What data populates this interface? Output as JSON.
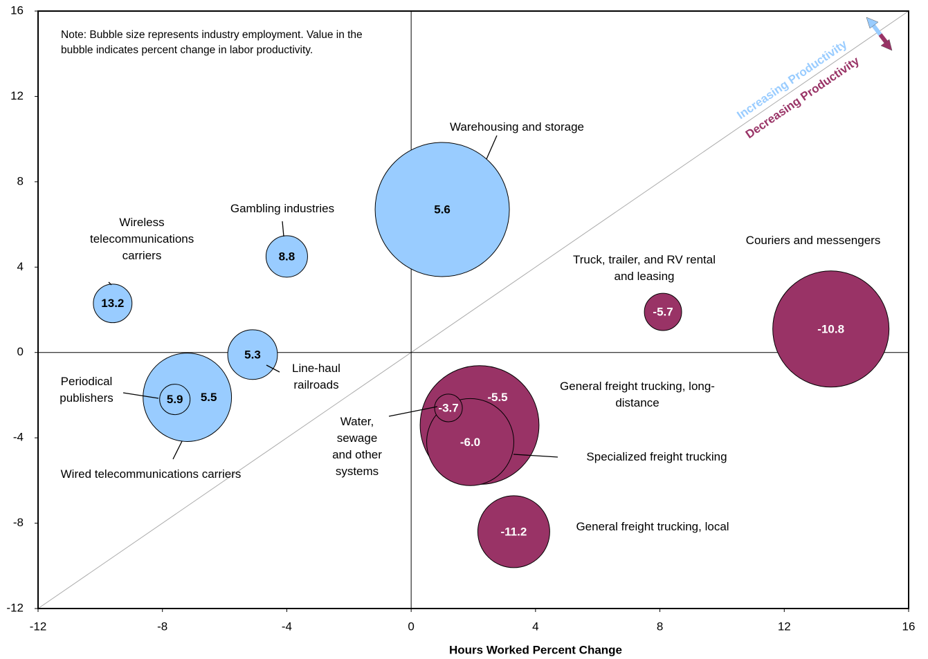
{
  "chart_data": {
    "type": "bubble",
    "note": "Note: Bubble size represents industry employment. Value in the bubble indicates percent change in labor productivity.",
    "xlabel": "Hours Worked Percent Change",
    "annotations": [
      "Increasing Productivity",
      "Decreasing Productivity"
    ],
    "annotation_colors": [
      "#99ccff",
      "#993366"
    ],
    "labels": [
      "Warehousing and storage",
      "General freight trucking, long-distance",
      "Couriers and messengers",
      "Wired telecommunications carriers",
      "Specialized freight trucking",
      "General freight trucking, local",
      "Line-haul railroads",
      "Gambling industries",
      "Wireless telecommunications carriers",
      "Truck, trailer, and RV rental and leasing",
      "Periodical publishers",
      "Water, sewage and other systems"
    ],
    "x": [
      1.0,
      2.2,
      13.5,
      -7.2,
      1.9,
      3.3,
      -5.1,
      -4.0,
      -9.6,
      8.1,
      -7.6,
      1.2
    ],
    "y": [
      6.7,
      -3.4,
      1.1,
      -2.1,
      -4.2,
      -8.4,
      -0.1,
      4.5,
      2.3,
      1.9,
      -2.2,
      -2.6
    ],
    "sizes": [
      700,
      549,
      525,
      304,
      295,
      201,
      96,
      67,
      58,
      54,
      36,
      30
    ],
    "values": [
      5.6,
      -5.5,
      -10.8,
      5.5,
      -6.0,
      -11.2,
      5.3,
      8.8,
      13.2,
      -5.7,
      5.9,
      -3.7
    ],
    "value_labels": [
      "5.6",
      "-5.5",
      "-10.8",
      "5.5",
      "-6.0",
      "-11.2",
      "5.3",
      "8.8",
      "13.2",
      "-5.7",
      "5.9",
      "-3.7"
    ],
    "colors": [
      "#99ccff",
      "#993366",
      "#993366",
      "#99ccff",
      "#993366",
      "#993366",
      "#99ccff",
      "#99ccff",
      "#99ccff",
      "#993366",
      "#99ccff",
      "#993366"
    ],
    "xlim": [
      -12,
      16
    ],
    "xticks": [
      -12,
      -8,
      -4,
      0,
      4,
      8,
      12,
      16
    ],
    "ylim": [
      -12,
      16
    ],
    "yticks": [
      -12,
      -8,
      -4,
      0,
      4,
      8,
      12,
      16
    ]
  }
}
